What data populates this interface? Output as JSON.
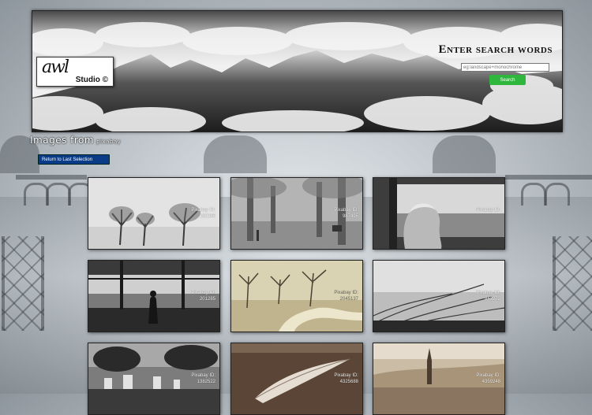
{
  "header": {
    "logo_script": "awl",
    "logo_studio": "Studio ©",
    "search_title": "Enter search words",
    "search_placeholder": "eg:landscape+monochrome",
    "search_button": "Search"
  },
  "subheader": {
    "images_from": "Images from",
    "source": "pixabay",
    "return_button": "Return to Last Selection"
  },
  "thumbnails": [
    {
      "label": "Pixabay ID:",
      "id": "182285",
      "tone": "#dcdcdc"
    },
    {
      "label": "Pixabay ID:",
      "id": "987495",
      "tone": "#a9a9a9"
    },
    {
      "label": "Pixabay ID:",
      "id": "",
      "tone": "#555555"
    },
    {
      "label": "Pixabay ID:",
      "id": "201285",
      "tone": "#6a6a6a"
    },
    {
      "label": "Pixabay ID:",
      "id": "2045137",
      "tone": "#c8bfa2"
    },
    {
      "label": "Pixabay ID:",
      "id": "843272",
      "tone": "#8c8c8c"
    },
    {
      "label": "Pixabay ID:",
      "id": "1382522",
      "tone": "#7a7a7a"
    },
    {
      "label": "Pixabay ID:",
      "id": "4325688",
      "tone": "#6f5a48"
    },
    {
      "label": "Pixabay ID:",
      "id": "4359248",
      "tone": "#b9a994"
    }
  ]
}
